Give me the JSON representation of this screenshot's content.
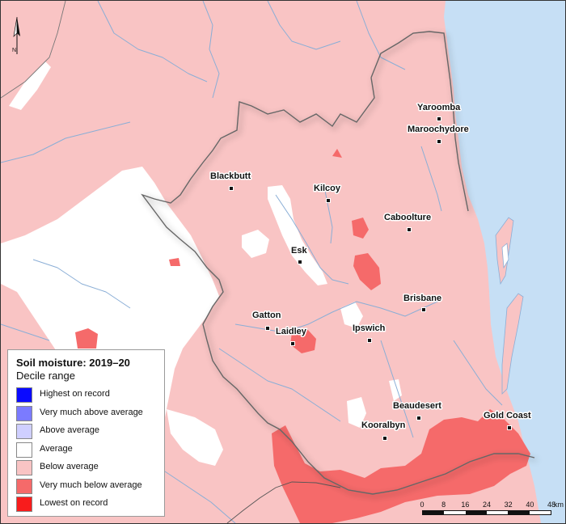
{
  "legend": {
    "title": "Soil moisture: 2019–20",
    "subtitle": "Decile range",
    "items": [
      {
        "label": "Highest on record",
        "color": "#0a0aff"
      },
      {
        "label": "Very much above average",
        "color": "#7b7bff"
      },
      {
        "label": "Above average",
        "color": "#cfcfff"
      },
      {
        "label": "Average",
        "color": "#ffffff"
      },
      {
        "label": "Below average",
        "color": "#f9c4c4"
      },
      {
        "label": "Very much below average",
        "color": "#f56a6a"
      },
      {
        "label": "Lowest on record",
        "color": "#f81c1c"
      }
    ]
  },
  "towns": [
    {
      "name": "Yaroomba"
    },
    {
      "name": "Maroochydore"
    },
    {
      "name": "Blackbutt"
    },
    {
      "name": "Kilcoy"
    },
    {
      "name": "Caboolture"
    },
    {
      "name": "Esk"
    },
    {
      "name": "Brisbane"
    },
    {
      "name": "Gatton"
    },
    {
      "name": "Laidley"
    },
    {
      "name": "Ipswich"
    },
    {
      "name": "Beaudesert"
    },
    {
      "name": "Kooralbyn"
    },
    {
      "name": "Gold Coast"
    }
  ],
  "scale": {
    "ticks": [
      "0",
      "8",
      "16",
      "24",
      "32",
      "40",
      "48"
    ],
    "unit": "km"
  },
  "north_label": "N",
  "colors": {
    "ocean": "#c6dff5",
    "below_average": "#f9c4c4",
    "very_much_below_average": "#f56a6a",
    "average": "#ffffff",
    "river": "#8aaed6",
    "boundary": "#666666"
  }
}
